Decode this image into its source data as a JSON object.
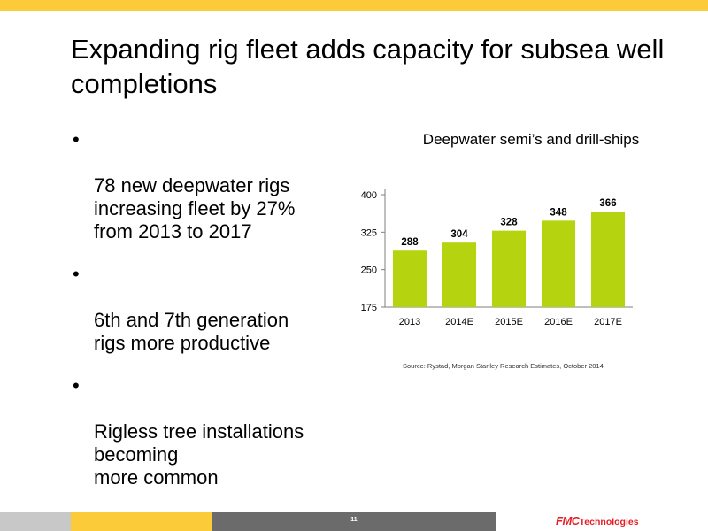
{
  "slide": {
    "title": "Expanding rig fleet adds capacity for subsea well completions",
    "bullets": [
      "78 new deepwater rigs\nincreasing fleet by 27%\nfrom 2013 to 2017",
      "6th and 7th generation\nrigs more productive",
      "Rigless tree installations\nbecoming\nmore common"
    ],
    "bullet_symbol": "•",
    "source": "Source:   Rystad, Morgan Stanley Research Estimates, October 2014",
    "page_number": "11",
    "logo": {
      "mark": "FMC",
      "text": "Technologies"
    }
  },
  "colors": {
    "accent_yellow": "#fbcb3a",
    "bar_green": "#b5d40f",
    "footer_dark": "#6b6b6b",
    "footer_light": "#c8c8c8",
    "brand_red": "#e41e26"
  },
  "chart_data": {
    "type": "bar",
    "title": "Deepwater semi’s and drill-ships",
    "categories": [
      "2013",
      "2014E",
      "2015E",
      "2016E",
      "2017E"
    ],
    "values": [
      288,
      304,
      328,
      348,
      366
    ],
    "data_labels": [
      "288",
      "304",
      "328",
      "348",
      "366"
    ],
    "yticks": [
      175,
      250,
      325,
      400
    ],
    "ylim": [
      175,
      400
    ],
    "xlabel": "",
    "ylabel": "",
    "grid": false,
    "legend": "none"
  }
}
